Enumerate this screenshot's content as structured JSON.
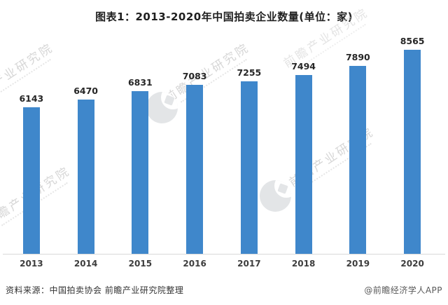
{
  "chart": {
    "title": "图表1：2013-2020年中国拍卖企业数量(单位：家)"
  },
  "chart_data": {
    "type": "bar",
    "title": "图表1：2013-2020年中国拍卖企业数量(单位：家)",
    "categories": [
      "2013",
      "2014",
      "2015",
      "2016",
      "2017",
      "2018",
      "2019",
      "2020"
    ],
    "values": [
      6143,
      6470,
      6831,
      7083,
      7255,
      7494,
      7890,
      8565
    ],
    "xlabel": "",
    "ylabel": "",
    "unit": "家",
    "ylim": [
      0,
      8565
    ],
    "grid": false,
    "legend": "none",
    "value_labels_shown": true,
    "bar_color": "#3F87CB",
    "axis_line_color": "#D9D9D9",
    "label_color": "#262626"
  },
  "footer": {
    "source": "资料来源：中国拍卖协会 前瞻产业研究院整理",
    "credit": "@前瞻经济学人APP"
  },
  "watermark": {
    "text": "前瞻产业研究院",
    "logo_name": "qianzhan-institute-logo",
    "color": "#D6D6D6"
  }
}
